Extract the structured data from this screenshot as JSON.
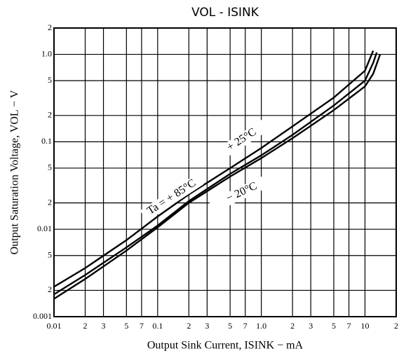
{
  "chart_data": {
    "type": "line",
    "title": "VOL - ISINK",
    "xlabel": "Output Sink Current, ISINK − mA",
    "ylabel": "Output Saturation Voltage, VOL − V",
    "log_x": true,
    "log_y": true,
    "grid": true,
    "color": "#000000",
    "xlim": [
      0.01,
      20
    ],
    "ylim": [
      0.001,
      2
    ],
    "xticks": [
      0.01,
      {
        "value": 0.02,
        "label": "2"
      },
      {
        "value": 0.03,
        "label": "3"
      },
      {
        "value": 0.05,
        "label": "5"
      },
      {
        "value": 0.07,
        "label": "7"
      },
      0.1,
      {
        "value": 0.2,
        "label": "2"
      },
      {
        "value": 0.3,
        "label": "3"
      },
      {
        "value": 0.5,
        "label": "5"
      },
      {
        "value": 0.7,
        "label": "7"
      },
      {
        "value": 1,
        "label": "1.0"
      },
      {
        "value": 2,
        "label": "2"
      },
      {
        "value": 3,
        "label": "3"
      },
      {
        "value": 5,
        "label": "5"
      },
      {
        "value": 7,
        "label": "7"
      },
      10,
      {
        "value": 20,
        "label": "2"
      }
    ],
    "yticks": [
      0.001,
      {
        "value": 0.002,
        "label": "2"
      },
      {
        "value": 0.005,
        "label": "5"
      },
      0.01,
      {
        "value": 0.02,
        "label": "2"
      },
      {
        "value": 0.05,
        "label": "5"
      },
      0.1,
      {
        "value": 0.2,
        "label": "2"
      },
      {
        "value": 0.5,
        "label": "5"
      },
      {
        "value": 1,
        "label": "1.0"
      },
      {
        "value": 2,
        "label": "2"
      }
    ],
    "series": [
      {
        "name": "Ta = + 85°C",
        "color": "#000000",
        "x": [
          0.01,
          0.02,
          0.05,
          0.1,
          0.2,
          0.5,
          1,
          2,
          5,
          10,
          12
        ],
        "values": [
          0.0022,
          0.0036,
          0.0075,
          0.014,
          0.025,
          0.05,
          0.085,
          0.15,
          0.32,
          0.65,
          1.1
        ]
      },
      {
        "name": "+ 25°C",
        "color": "#000000",
        "x": [
          0.01,
          0.02,
          0.05,
          0.1,
          0.2,
          0.5,
          1,
          2,
          5,
          10,
          12,
          13
        ],
        "values": [
          0.0018,
          0.003,
          0.0062,
          0.011,
          0.021,
          0.043,
          0.07,
          0.12,
          0.26,
          0.5,
          0.8,
          1.05
        ]
      },
      {
        "name": "− 20°C",
        "color": "#000000",
        "x": [
          0.01,
          0.02,
          0.05,
          0.1,
          0.2,
          0.5,
          1,
          2,
          5,
          10,
          12,
          14
        ],
        "values": [
          0.0016,
          0.0027,
          0.0057,
          0.0105,
          0.02,
          0.04,
          0.065,
          0.11,
          0.23,
          0.43,
          0.6,
          1.0
        ]
      }
    ]
  }
}
